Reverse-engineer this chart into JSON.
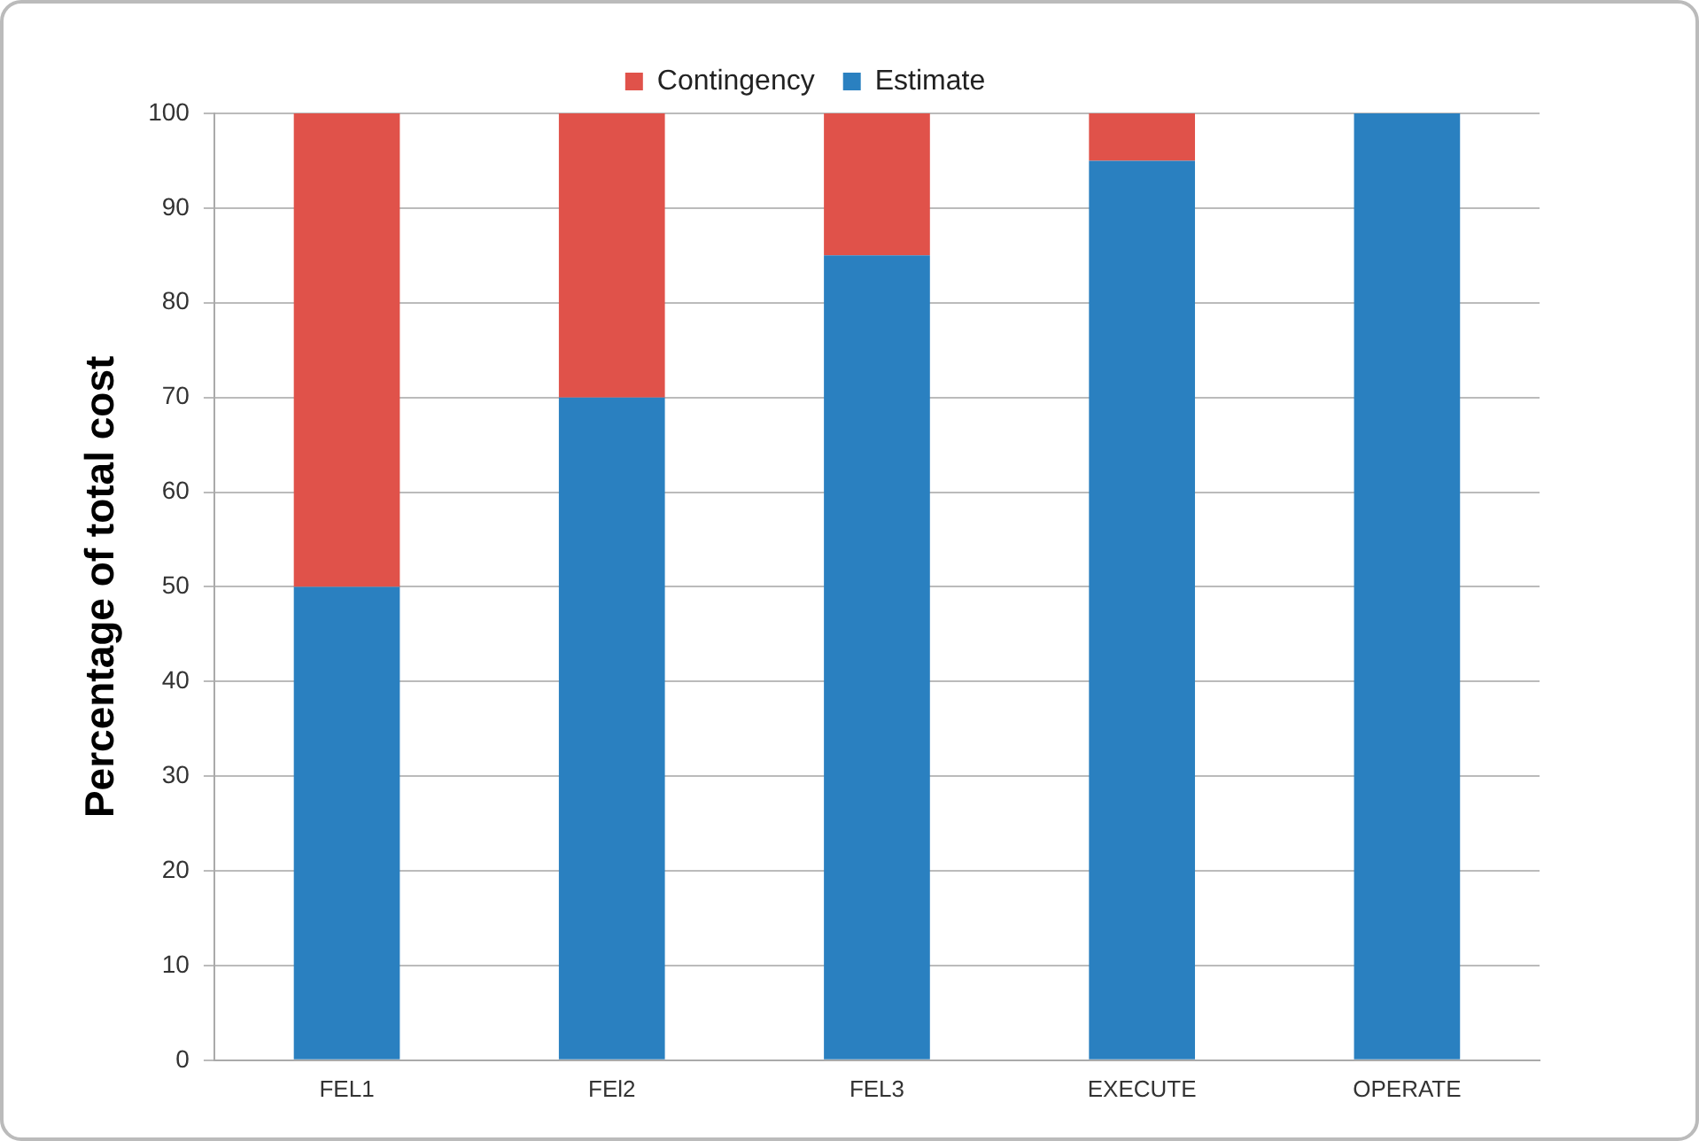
{
  "chart_data": {
    "type": "bar",
    "stacked": true,
    "ylabel": "Percentage of total cost",
    "categories": [
      "FEL1",
      "FEl2",
      "FEL3",
      "EXECUTE",
      "OPERATE"
    ],
    "series": [
      {
        "name": "Estimate",
        "color": "#2a80c0",
        "values": [
          50,
          70,
          85,
          95,
          100
        ]
      },
      {
        "name": "Contingency",
        "color": "#e0524a",
        "values": [
          50,
          30,
          15,
          5,
          0
        ]
      }
    ],
    "ylim": [
      0,
      100
    ],
    "yticks": [
      0,
      10,
      20,
      30,
      40,
      50,
      60,
      70,
      80,
      90,
      100
    ],
    "grid": "y",
    "legend": "top"
  }
}
